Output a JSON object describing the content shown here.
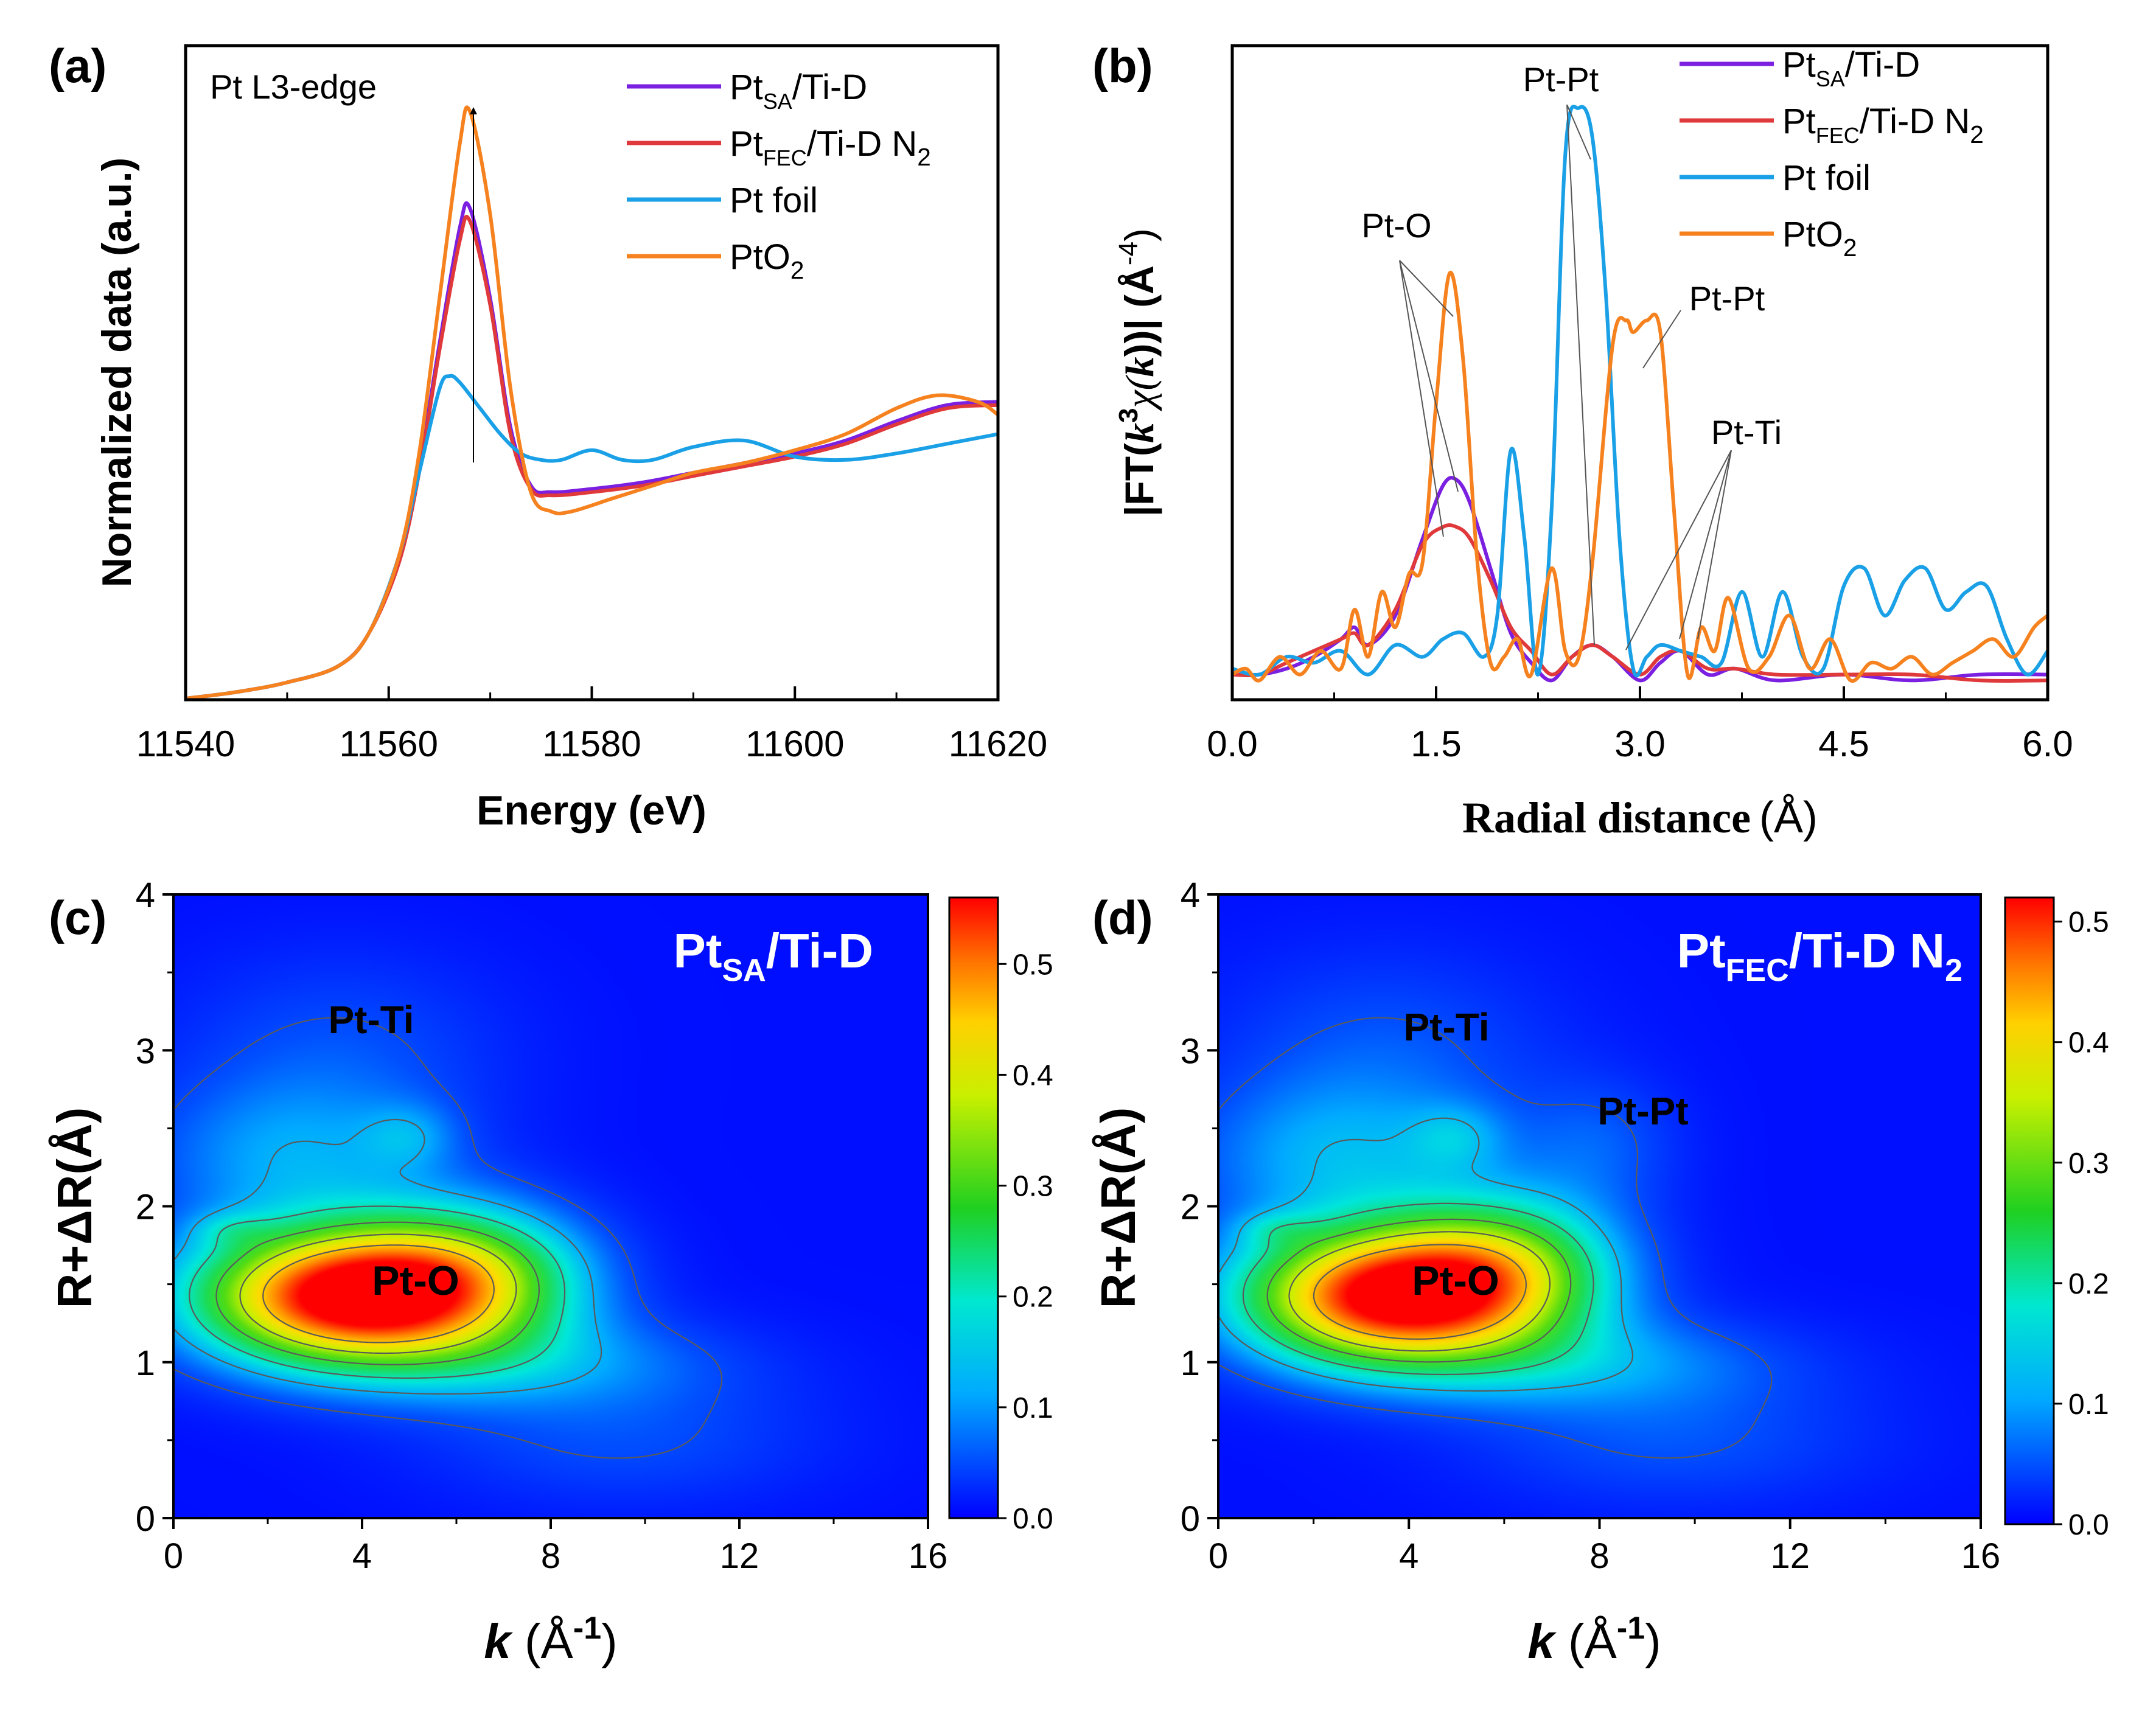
{
  "colors": {
    "pt_sa": "#7b1fe0",
    "pt_fec": "#e0393b",
    "pt_foil": "#1aa0e6",
    "pto2": "#f6821f",
    "axis": "#000000",
    "contour": "#5a5a5a",
    "heat_label": "#000000",
    "heat_title": "#ffffff"
  },
  "panels": {
    "a": {
      "tag": "(a)",
      "annotation": "Pt L3-edge",
      "xlabel": "Energy (eV)",
      "ylabel": "Normalized data (a.u.)"
    },
    "b": {
      "tag": "(b)",
      "xlabel_main": "Radial distance",
      "xlabel_unit": "(Å)",
      "ylabel": "|FT(k³χ(k))| (Å⁻⁴)",
      "ylabel_parts": {
        "pre": "|FT(",
        "k": "k",
        "sup3": "3",
        "chi": "χ(",
        "k2": "k",
        "post": "))| (Å",
        "sup": "-4",
        "end": ")"
      },
      "labels": {
        "pt_o": "Pt-O",
        "pt_pt_1": "Pt-Pt",
        "pt_pt_2": "Pt-Pt",
        "pt_ti": "Pt-Ti"
      }
    },
    "c": {
      "tag": "(c)",
      "title_main": "Pt",
      "title_sub": "SA",
      "title_rest": "/Ti-D",
      "labels": {
        "pt_ti": "Pt-Ti",
        "pt_o": "Pt-O"
      },
      "xlabel_k": "k",
      "xlabel_unit": " (Å",
      "xlabel_sup": "-1",
      "xlabel_end": ")",
      "ylabel": "R+ΔR(Å)"
    },
    "d": {
      "tag": "(d)",
      "title_main": "Pt",
      "title_sub": "FEC",
      "title_rest": "/Ti-D N",
      "title_sub2": "2",
      "labels": {
        "pt_ti": "Pt-Ti",
        "pt_pt": "Pt-Pt",
        "pt_o": "Pt-O"
      },
      "xlabel_k": "k",
      "xlabel_unit": " (Å",
      "xlabel_sup": "-1",
      "xlabel_end": ")",
      "ylabel": "R+ΔR(Å)"
    }
  },
  "legend": [
    {
      "main": "Pt",
      "sub": "SA",
      "rest": "/Ti-D",
      "sub2": "",
      "color": "#7b1fe0"
    },
    {
      "main": "Pt",
      "sub": "FEC",
      "rest": "/Ti-D N",
      "sub2": "2",
      "color": "#e0393b"
    },
    {
      "main": "Pt foil",
      "sub": "",
      "rest": "",
      "sub2": "",
      "color": "#1aa0e6"
    },
    {
      "main": "PtO",
      "sub": "2",
      "rest": "",
      "sub2": "",
      "color": "#f6821f",
      "sub_is_digit": true
    }
  ],
  "chart_data": [
    {
      "type": "line",
      "panel": "a",
      "xlabel": "Energy (eV)",
      "ylabel": "Normalized data (a.u.)",
      "xlim": [
        11540,
        11620
      ],
      "ylim": [
        0,
        1
      ],
      "xticks": [
        11540,
        11560,
        11580,
        11600,
        11620
      ],
      "series": [
        {
          "name": "Pt_SA/Ti-D",
          "key": "pt_sa",
          "x": [
            11540,
            11545,
            11550,
            11555,
            11558,
            11561,
            11563,
            11565,
            11567,
            11568,
            11570,
            11572,
            11574,
            11576,
            11580,
            11585,
            11590,
            11595,
            11600,
            11605,
            11610,
            11615,
            11620
          ],
          "y": [
            0.0,
            0.01,
            0.025,
            0.05,
            0.1,
            0.22,
            0.36,
            0.55,
            0.73,
            0.76,
            0.62,
            0.42,
            0.33,
            0.32,
            0.325,
            0.335,
            0.35,
            0.365,
            0.38,
            0.4,
            0.43,
            0.455,
            0.46
          ]
        },
        {
          "name": "Pt_FEC/Ti-D N2",
          "key": "pt_fec",
          "x": [
            11540,
            11545,
            11550,
            11555,
            11558,
            11561,
            11563,
            11565,
            11567,
            11568,
            11570,
            11572,
            11574,
            11576,
            11580,
            11585,
            11590,
            11595,
            11600,
            11605,
            11610,
            11615,
            11620
          ],
          "y": [
            0.0,
            0.01,
            0.025,
            0.05,
            0.1,
            0.21,
            0.35,
            0.54,
            0.71,
            0.74,
            0.61,
            0.41,
            0.325,
            0.315,
            0.32,
            0.33,
            0.345,
            0.36,
            0.375,
            0.395,
            0.425,
            0.45,
            0.455
          ]
        },
        {
          "name": "Pt foil",
          "key": "pt_foil",
          "x": [
            11540,
            11545,
            11550,
            11555,
            11558,
            11561,
            11563,
            11565,
            11566,
            11567,
            11569,
            11571,
            11573,
            11575,
            11577,
            11580,
            11583,
            11586,
            11590,
            11595,
            11600,
            11605,
            11610,
            11615,
            11620
          ],
          "y": [
            0.0,
            0.01,
            0.025,
            0.05,
            0.1,
            0.22,
            0.35,
            0.48,
            0.5,
            0.49,
            0.45,
            0.41,
            0.38,
            0.37,
            0.37,
            0.385,
            0.37,
            0.37,
            0.39,
            0.4,
            0.375,
            0.37,
            0.38,
            0.395,
            0.41
          ]
        },
        {
          "name": "PtO2",
          "key": "pto2",
          "x": [
            11540,
            11545,
            11550,
            11555,
            11558,
            11561,
            11563,
            11565,
            11567,
            11568,
            11570,
            11572,
            11574,
            11576,
            11578,
            11582,
            11586,
            11590,
            11595,
            11600,
            11605,
            11610,
            11614,
            11618,
            11620
          ],
          "y": [
            0.0,
            0.01,
            0.025,
            0.05,
            0.1,
            0.22,
            0.38,
            0.62,
            0.86,
            0.91,
            0.75,
            0.48,
            0.32,
            0.29,
            0.29,
            0.31,
            0.33,
            0.35,
            0.365,
            0.385,
            0.41,
            0.45,
            0.47,
            0.46,
            0.44
          ]
        }
      ]
    },
    {
      "type": "line",
      "panel": "b",
      "xlabel": "Radial distance (Å)",
      "ylabel": "|FT(k³χ(k))| (Å⁻⁴)",
      "xlim": [
        0,
        6
      ],
      "ylim": [
        0,
        1
      ],
      "xticks": [
        0.0,
        1.5,
        3.0,
        4.5,
        6.0
      ],
      "series": [
        {
          "name": "Pt_SA/Ti-D",
          "key": "pt_sa",
          "x": [
            0.0,
            0.2,
            0.4,
            0.6,
            0.8,
            0.9,
            1.0,
            1.2,
            1.4,
            1.55,
            1.65,
            1.75,
            1.9,
            2.05,
            2.2,
            2.35,
            2.5,
            2.65,
            2.8,
            3.0,
            3.15,
            3.3,
            3.5,
            3.7,
            4.0,
            4.5,
            5.0,
            5.5,
            6.0
          ],
          "y": [
            0.02,
            0.02,
            0.03,
            0.05,
            0.08,
            0.1,
            0.07,
            0.12,
            0.25,
            0.34,
            0.35,
            0.31,
            0.2,
            0.09,
            0.04,
            0.01,
            0.05,
            0.07,
            0.05,
            0.01,
            0.04,
            0.06,
            0.02,
            0.03,
            0.01,
            0.02,
            0.01,
            0.02,
            0.02
          ]
        },
        {
          "name": "Pt_FEC/Ti-D N2",
          "key": "pt_fec",
          "x": [
            0.0,
            0.2,
            0.4,
            0.6,
            0.8,
            0.9,
            1.0,
            1.2,
            1.4,
            1.55,
            1.65,
            1.75,
            1.9,
            2.05,
            2.2,
            2.35,
            2.5,
            2.65,
            2.8,
            3.0,
            3.15,
            3.3,
            3.5,
            3.7,
            4.0,
            4.5,
            5.0,
            5.5,
            6.0
          ],
          "y": [
            0.02,
            0.02,
            0.04,
            0.06,
            0.08,
            0.09,
            0.07,
            0.13,
            0.24,
            0.27,
            0.27,
            0.25,
            0.18,
            0.1,
            0.06,
            0.02,
            0.05,
            0.07,
            0.05,
            0.02,
            0.05,
            0.06,
            0.03,
            0.03,
            0.02,
            0.02,
            0.02,
            0.01,
            0.01
          ]
        },
        {
          "name": "Pt foil",
          "key": "pt_foil",
          "x": [
            0.0,
            0.2,
            0.4,
            0.6,
            0.8,
            1.0,
            1.2,
            1.4,
            1.55,
            1.7,
            1.85,
            1.95,
            2.05,
            2.15,
            2.25,
            2.35,
            2.45,
            2.55,
            2.65,
            2.75,
            2.85,
            2.95,
            3.05,
            3.15,
            3.3,
            3.45,
            3.6,
            3.75,
            3.9,
            4.05,
            4.2,
            4.35,
            4.5,
            4.65,
            4.8,
            4.95,
            5.1,
            5.25,
            5.4,
            5.55,
            5.7,
            5.85,
            6.0
          ],
          "y": [
            0.03,
            0.02,
            0.05,
            0.04,
            0.06,
            0.02,
            0.07,
            0.05,
            0.08,
            0.09,
            0.05,
            0.12,
            0.4,
            0.25,
            0.02,
            0.3,
            0.9,
            0.98,
            0.93,
            0.66,
            0.25,
            0.03,
            0.05,
            0.07,
            0.06,
            0.05,
            0.04,
            0.16,
            0.05,
            0.16,
            0.05,
            0.03,
            0.17,
            0.2,
            0.12,
            0.18,
            0.2,
            0.13,
            0.16,
            0.17,
            0.08,
            0.02,
            0.06
          ]
        },
        {
          "name": "PtO2",
          "key": "pto2",
          "x": [
            0.0,
            0.1,
            0.2,
            0.35,
            0.5,
            0.65,
            0.8,
            0.9,
            1.0,
            1.1,
            1.2,
            1.3,
            1.4,
            1.5,
            1.6,
            1.7,
            1.8,
            1.9,
            2.0,
            2.1,
            2.2,
            2.35,
            2.45,
            2.55,
            2.65,
            2.8,
            2.9,
            2.95,
            3.05,
            3.15,
            3.25,
            3.35,
            3.45,
            3.55,
            3.65,
            3.8,
            3.95,
            4.1,
            4.25,
            4.4,
            4.55,
            4.7,
            4.85,
            5.0,
            5.15,
            5.3,
            5.45,
            5.6,
            5.75,
            5.9,
            6.0
          ],
          "y": [
            0.02,
            0.03,
            0.01,
            0.05,
            0.02,
            0.06,
            0.03,
            0.13,
            0.05,
            0.16,
            0.1,
            0.19,
            0.21,
            0.48,
            0.7,
            0.55,
            0.22,
            0.04,
            0.05,
            0.08,
            0.02,
            0.2,
            0.06,
            0.05,
            0.21,
            0.58,
            0.62,
            0.6,
            0.62,
            0.6,
            0.3,
            0.02,
            0.1,
            0.06,
            0.15,
            0.03,
            0.05,
            0.12,
            0.03,
            0.08,
            0.01,
            0.04,
            0.03,
            0.05,
            0.02,
            0.04,
            0.06,
            0.08,
            0.05,
            0.1,
            0.12
          ]
        }
      ],
      "annotations": [
        "Pt-O",
        "Pt-Pt",
        "Pt-Pt",
        "Pt-Ti"
      ]
    },
    {
      "type": "heatmap",
      "panel": "c",
      "title": "Pt_SA/Ti-D",
      "xlabel": "k (Å^-1)",
      "ylabel": "R+ΔR(Å)",
      "xlim": [
        0,
        16
      ],
      "ylim": [
        0,
        4
      ],
      "xticks": [
        0,
        4,
        8,
        12,
        16
      ],
      "yticks": [
        0,
        1,
        2,
        3,
        4
      ],
      "colorbar": {
        "min": 0.0,
        "max": 0.56,
        "ticks": [
          0.0,
          0.1,
          0.2,
          0.3,
          0.4,
          0.5
        ]
      },
      "blobs": [
        {
          "k": 3.6,
          "r": 1.42,
          "sk": 2.2,
          "sr": 0.3,
          "amp": 0.55
        },
        {
          "k": 6.2,
          "r": 1.55,
          "sk": 1.8,
          "sr": 0.32,
          "amp": 0.25
        },
        {
          "k": 7.5,
          "r": 1.0,
          "sk": 3.0,
          "sr": 0.22,
          "amp": 0.09
        },
        {
          "k": 2.5,
          "r": 2.3,
          "sk": 2.2,
          "sr": 0.35,
          "amp": 0.1
        },
        {
          "k": 1.2,
          "r": 1.85,
          "sk": 0.6,
          "sr": 0.08,
          "amp": 0.05
        },
        {
          "k": 5.0,
          "r": 2.45,
          "sk": 0.7,
          "sr": 0.15,
          "amp": 0.06
        },
        {
          "k": 3.5,
          "r": 3.0,
          "sk": 2.5,
          "sr": 0.45,
          "amp": 0.05
        },
        {
          "k": 9.5,
          "r": 0.5,
          "sk": 3.0,
          "sr": 0.3,
          "amp": 0.05
        }
      ],
      "contours": [
        0.06,
        0.13,
        0.2,
        0.28,
        0.36,
        0.44
      ],
      "labels": [
        "Pt-Ti",
        "Pt-O"
      ]
    },
    {
      "type": "heatmap",
      "panel": "d",
      "title": "Pt_FEC/Ti-D N2",
      "xlabel": "k (Å^-1)",
      "ylabel": "R+ΔR(Å)",
      "xlim": [
        0,
        16
      ],
      "ylim": [
        0,
        4
      ],
      "xticks": [
        0,
        4,
        8,
        12,
        16
      ],
      "yticks": [
        0,
        1,
        2,
        3,
        4
      ],
      "colorbar": {
        "min": 0.0,
        "max": 0.52,
        "ticks": [
          0.0,
          0.1,
          0.2,
          0.3,
          0.4,
          0.5
        ]
      },
      "blobs": [
        {
          "k": 3.5,
          "r": 1.42,
          "sk": 2.1,
          "sr": 0.3,
          "amp": 0.5
        },
        {
          "k": 6.0,
          "r": 1.6,
          "sk": 1.7,
          "sr": 0.33,
          "amp": 0.24
        },
        {
          "k": 7.5,
          "r": 1.0,
          "sk": 3.0,
          "sr": 0.22,
          "amp": 0.09
        },
        {
          "k": 2.5,
          "r": 2.3,
          "sk": 2.2,
          "sr": 0.35,
          "amp": 0.1
        },
        {
          "k": 1.2,
          "r": 1.85,
          "sk": 0.6,
          "sr": 0.08,
          "amp": 0.05
        },
        {
          "k": 5.0,
          "r": 2.45,
          "sk": 0.7,
          "sr": 0.15,
          "amp": 0.06
        },
        {
          "k": 3.5,
          "r": 3.0,
          "sk": 2.5,
          "sr": 0.45,
          "amp": 0.05
        },
        {
          "k": 8.0,
          "r": 2.4,
          "sk": 1.2,
          "sr": 0.3,
          "amp": 0.05
        },
        {
          "k": 9.5,
          "r": 0.5,
          "sk": 3.0,
          "sr": 0.3,
          "amp": 0.05
        }
      ],
      "contours": [
        0.06,
        0.13,
        0.2,
        0.27,
        0.34,
        0.42
      ],
      "labels": [
        "Pt-Ti",
        "Pt-Pt",
        "Pt-O"
      ]
    }
  ]
}
